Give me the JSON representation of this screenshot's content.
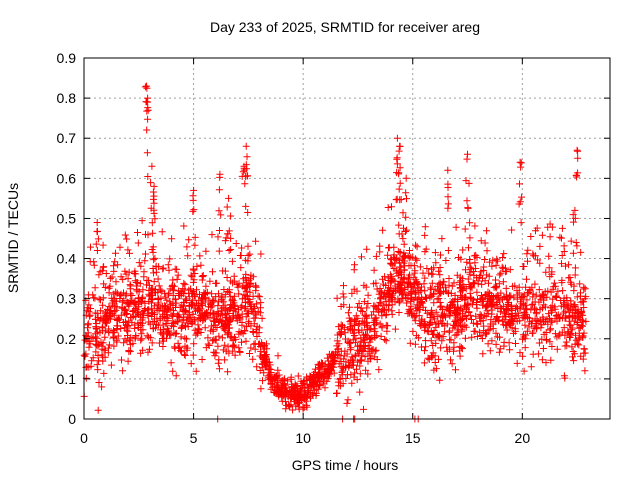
{
  "chart_data": {
    "type": "scatter",
    "title": "Day 233 of 2025, SRMTID for receiver areg",
    "xlabel": "GPS time / hours",
    "ylabel": "SRMTID / TECUs",
    "xlim": [
      0,
      24
    ],
    "ylim": [
      0,
      0.9
    ],
    "xticks": [
      0,
      5,
      10,
      15,
      20
    ],
    "yticks": [
      0,
      0.1,
      0.2,
      0.3,
      0.4,
      0.5,
      0.6,
      0.7,
      0.8,
      0.9
    ],
    "xtick_labels": [
      "0",
      "5",
      "10",
      "15",
      "20"
    ],
    "ytick_labels": [
      "0",
      "0.1",
      "0.2",
      "0.3",
      "0.4",
      "0.5",
      "0.6",
      "0.7",
      "0.8",
      "0.9"
    ],
    "grid": true,
    "marker": "+",
    "marker_color": "#ff0000",
    "x_range_of_data": [
      0,
      22.9
    ],
    "profile": [
      [
        0.0,
        0.2
      ],
      [
        0.5,
        0.23
      ],
      [
        1.0,
        0.24
      ],
      [
        1.5,
        0.26
      ],
      [
        2.0,
        0.27
      ],
      [
        2.5,
        0.28
      ],
      [
        3.0,
        0.29
      ],
      [
        3.5,
        0.27
      ],
      [
        4.0,
        0.26
      ],
      [
        4.5,
        0.26
      ],
      [
        5.0,
        0.27
      ],
      [
        5.5,
        0.27
      ],
      [
        6.0,
        0.25
      ],
      [
        6.5,
        0.24
      ],
      [
        7.0,
        0.27
      ],
      [
        7.5,
        0.31
      ],
      [
        8.0,
        0.22
      ],
      [
        8.5,
        0.1
      ],
      [
        9.0,
        0.07
      ],
      [
        9.5,
        0.06
      ],
      [
        10.0,
        0.06
      ],
      [
        10.5,
        0.09
      ],
      [
        11.0,
        0.12
      ],
      [
        11.5,
        0.15
      ],
      [
        12.0,
        0.17
      ],
      [
        12.5,
        0.19
      ],
      [
        13.0,
        0.21
      ],
      [
        13.5,
        0.26
      ],
      [
        14.0,
        0.34
      ],
      [
        14.5,
        0.35
      ],
      [
        15.0,
        0.32
      ],
      [
        15.5,
        0.27
      ],
      [
        16.0,
        0.25
      ],
      [
        16.5,
        0.25
      ],
      [
        17.0,
        0.26
      ],
      [
        17.5,
        0.29
      ],
      [
        18.0,
        0.29
      ],
      [
        18.5,
        0.28
      ],
      [
        19.0,
        0.28
      ],
      [
        19.5,
        0.27
      ],
      [
        20.0,
        0.27
      ],
      [
        20.5,
        0.26
      ],
      [
        21.0,
        0.27
      ],
      [
        21.5,
        0.27
      ],
      [
        22.0,
        0.25
      ],
      [
        22.5,
        0.25
      ],
      [
        22.9,
        0.25
      ]
    ],
    "peaks": [
      {
        "x": 2.85,
        "y": 0.83
      },
      {
        "x": 2.9,
        "y": 0.8
      },
      {
        "x": 3.1,
        "y": 0.63
      },
      {
        "x": 3.2,
        "y": 0.58
      },
      {
        "x": 5.0,
        "y": 0.57
      },
      {
        "x": 6.2,
        "y": 0.61
      },
      {
        "x": 6.6,
        "y": 0.55
      },
      {
        "x": 7.4,
        "y": 0.68
      },
      {
        "x": 7.3,
        "y": 0.63
      },
      {
        "x": 14.3,
        "y": 0.7
      },
      {
        "x": 14.4,
        "y": 0.68
      },
      {
        "x": 14.7,
        "y": 0.6
      },
      {
        "x": 16.6,
        "y": 0.62
      },
      {
        "x": 17.5,
        "y": 0.66
      },
      {
        "x": 19.9,
        "y": 0.64
      },
      {
        "x": 22.5,
        "y": 0.67
      },
      {
        "x": 22.4,
        "y": 0.52
      },
      {
        "x": 0.6,
        "y": 0.49
      }
    ],
    "zero_points": [
      6.1,
      11.8,
      12.3,
      12.35,
      15.1,
      15.25
    ],
    "point_count": 2600
  }
}
